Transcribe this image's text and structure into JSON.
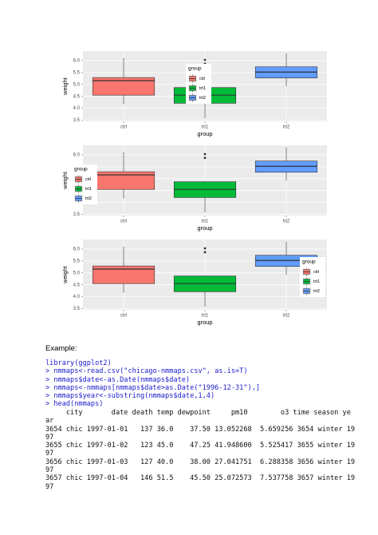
{
  "chart_data": [
    {
      "type": "boxplot",
      "x_label": "group",
      "y_label": "weight",
      "legend_title": "group",
      "legend_position": "top",
      "categories": [
        "ctrl",
        "trt1",
        "trt2"
      ],
      "colors": [
        "#F8766D",
        "#00BA38",
        "#619CFF"
      ],
      "boxes": [
        {
          "min": 4.17,
          "q1": 4.55,
          "median": 5.16,
          "q3": 5.29,
          "max": 6.11,
          "outliers": []
        },
        {
          "min": 3.59,
          "q1": 4.21,
          "median": 4.55,
          "q3": 4.87,
          "max": 4.89,
          "outliers": [
            5.87,
            6.03
          ]
        },
        {
          "min": 4.92,
          "q1": 5.27,
          "median": 5.52,
          "q3": 5.74,
          "max": 6.31,
          "outliers": []
        }
      ],
      "ylim": [
        3.45,
        6.4
      ],
      "yticks": [
        3.5,
        {
          "value": 4,
          "label": "4.0"
        },
        4.5,
        {
          "value": 5,
          "label": "5.0"
        },
        5.5,
        {
          "value": 6,
          "label": "6.0"
        }
      ],
      "grid": true
    },
    {
      "type": "boxplot",
      "x_label": "group",
      "y_label": "weight",
      "legend_title": "group",
      "legend_position": "left",
      "categories": [
        "ctrl",
        "trt1",
        "trt2"
      ],
      "colors": [
        "#F8766D",
        "#00BA38",
        "#619CFF"
      ],
      "boxes": [
        {
          "min": 4.17,
          "q1": 4.55,
          "median": 5.16,
          "q3": 5.29,
          "max": 6.11,
          "outliers": []
        },
        {
          "min": 3.59,
          "q1": 4.21,
          "median": 4.55,
          "q3": 4.87,
          "max": 4.89,
          "outliers": [
            5.87,
            6.03
          ]
        },
        {
          "min": 4.92,
          "q1": 5.27,
          "median": 5.52,
          "q3": 5.74,
          "max": 6.31,
          "outliers": []
        }
      ],
      "ylim": [
        3.45,
        6.4
      ],
      "yticks": [
        3.5,
        {
          "value": 4,
          "label": "4.0"
        },
        4.5,
        {
          "value": 5,
          "label": "5.0"
        },
        5.5,
        {
          "value": 6,
          "label": "6.0"
        }
      ],
      "grid": true
    },
    {
      "type": "boxplot",
      "x_label": "group",
      "y_label": "weight",
      "legend_title": "group",
      "legend_position": "bottom-right",
      "categories": [
        "ctrl",
        "trt1",
        "trt2"
      ],
      "colors": [
        "#F8766D",
        "#00BA38",
        "#619CFF"
      ],
      "boxes": [
        {
          "min": 4.17,
          "q1": 4.55,
          "median": 5.16,
          "q3": 5.29,
          "max": 6.11,
          "outliers": []
        },
        {
          "min": 3.59,
          "q1": 4.21,
          "median": 4.55,
          "q3": 4.87,
          "max": 4.89,
          "outliers": [
            5.87,
            6.03
          ]
        },
        {
          "min": 4.92,
          "q1": 5.27,
          "median": 5.52,
          "q3": 5.74,
          "max": 6.31,
          "outliers": []
        }
      ],
      "ylim": [
        3.45,
        6.4
      ],
      "yticks": [
        3.5,
        {
          "value": 4,
          "label": "4.0"
        },
        4.5,
        {
          "value": 5,
          "label": "5.0"
        },
        5.5,
        {
          "value": 6,
          "label": "6.0"
        }
      ],
      "grid": true
    }
  ],
  "document": {
    "heading": "Example:",
    "input_lines": [
      "library(ggplot2)",
      "> nmmaps<-read.csv(\"chicago-nmmaps.csv\", as.is=T)",
      "> nmmaps$date<-as.Date(nmmaps$date)",
      "> nmmaps<-nmmaps[nmmaps$date>as.Date(\"1996-12-31\"),]",
      "> nmmaps$year<-substring(nmmaps$date,1,4)",
      "> head(nmmaps)"
    ],
    "output_lines": [
      "     city       date death temp dewpoint     pm10        o3 time season ye",
      "ar",
      "3654 chic 1997-01-01   137 36.0    37.50 13.052268  5.659256 3654 winter 19",
      "97",
      "3655 chic 1997-01-02   123 45.0    47.25 41.948600  5.525417 3655 winter 19",
      "97",
      "3656 chic 1997-01-03   127 40.0    38.00 27.041751  6.288358 3656 winter 19",
      "97",
      "3657 chic 1997-01-04   146 51.5    45.50 25.072573  7.537758 3657 winter 19",
      "97"
    ]
  }
}
